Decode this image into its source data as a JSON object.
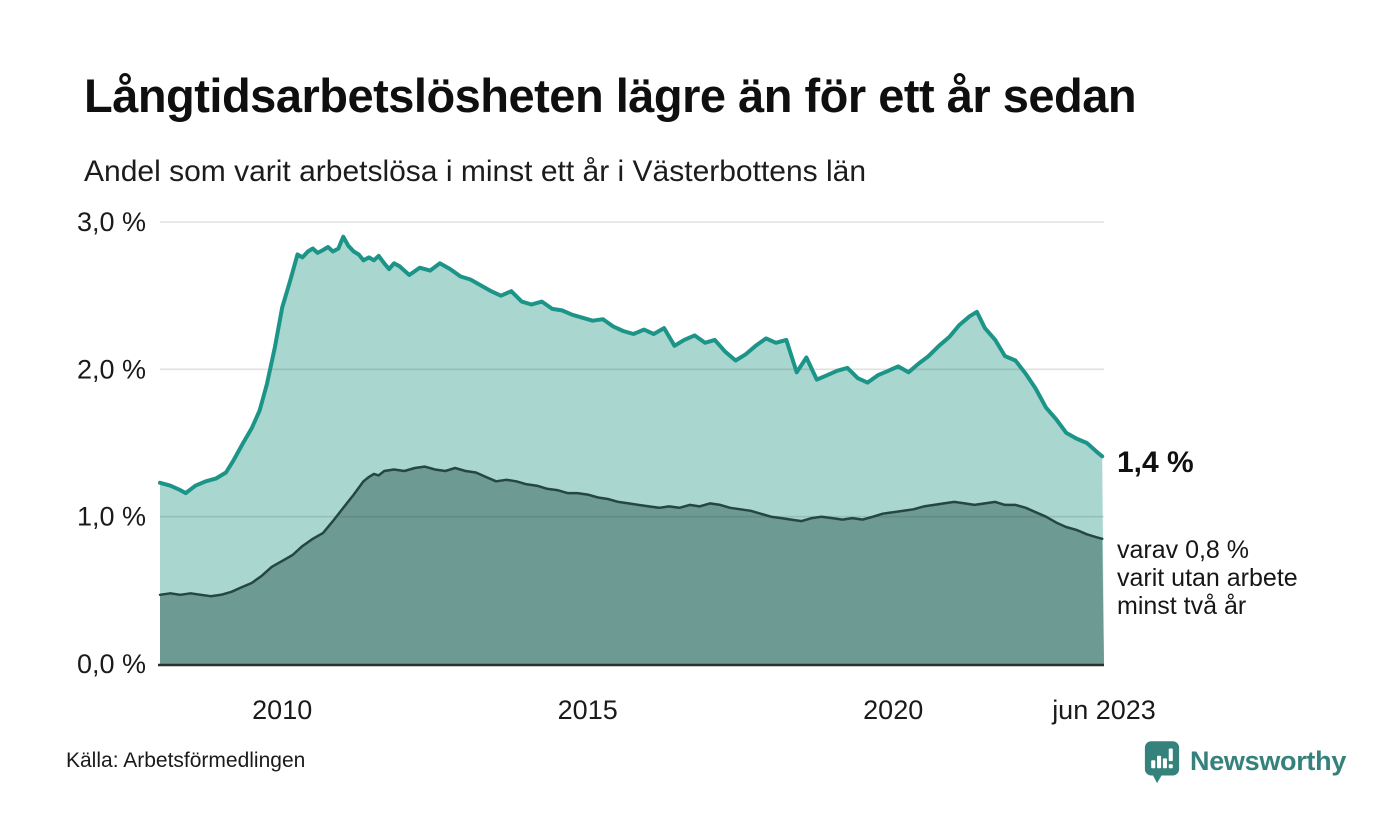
{
  "title": "Långtidsarbetslösheten lägre än för ett år sedan",
  "subtitle": "Andel som varit arbetslösa i minst ett år i Västerbottens län",
  "source": "Källa: Arbetsförmedlingen",
  "branding": {
    "name": "Newsworthy",
    "color": "#35827c"
  },
  "annotations": {
    "latest_total": "1,4 %",
    "secondary_lines": [
      "varav 0,8 %",
      "varit utan arbete",
      "minst två år"
    ]
  },
  "colors": {
    "total_stroke": "#1c9488",
    "total_fill": "#a9d6cf",
    "subset_stroke": "#254743",
    "subset_fill": "#6e9a94",
    "gridline": "rgba(40,40,40,0.14)",
    "axis_line": "#2e2e2e",
    "tick_text": "#1a1a1a"
  },
  "chart_data": {
    "type": "area",
    "title": "Långtidsarbetslösheten lägre än för ett år sedan",
    "subtitle": "Andel som varit arbetslösa i minst ett år i Västerbottens län",
    "ylabel": "",
    "xlabel": "",
    "x_range": [
      2008.0,
      2023.45
    ],
    "y_range": [
      0,
      3.0
    ],
    "grid": true,
    "legend": "annotated-inline",
    "x_ticks": [
      {
        "label": "2010",
        "year": 2010
      },
      {
        "label": "2015",
        "year": 2015
      },
      {
        "label": "2020",
        "year": 2020
      },
      {
        "label": "jun 2023",
        "year": 2023.45
      }
    ],
    "y_ticks": [
      {
        "label": "3,0 %",
        "value": 3.0
      },
      {
        "label": "2,0 %",
        "value": 2.0
      },
      {
        "label": "1,0 %",
        "value": 1.0
      },
      {
        "label": "0,0 %",
        "value": 0.0
      }
    ],
    "series": [
      {
        "name": "arbetslösa minst ett år",
        "latest_value_label": "1,4 %",
        "points": [
          [
            2008.0,
            1.23
          ],
          [
            2008.17,
            1.21
          ],
          [
            2008.33,
            1.18
          ],
          [
            2008.42,
            1.16
          ],
          [
            2008.58,
            1.21
          ],
          [
            2008.75,
            1.24
          ],
          [
            2008.92,
            1.26
          ],
          [
            2009.08,
            1.3
          ],
          [
            2009.2,
            1.38
          ],
          [
            2009.36,
            1.5
          ],
          [
            2009.5,
            1.6
          ],
          [
            2009.63,
            1.72
          ],
          [
            2009.75,
            1.9
          ],
          [
            2009.88,
            2.15
          ],
          [
            2010.0,
            2.42
          ],
          [
            2010.13,
            2.6
          ],
          [
            2010.25,
            2.78
          ],
          [
            2010.33,
            2.76
          ],
          [
            2010.42,
            2.8
          ],
          [
            2010.5,
            2.82
          ],
          [
            2010.58,
            2.79
          ],
          [
            2010.67,
            2.81
          ],
          [
            2010.75,
            2.83
          ],
          [
            2010.83,
            2.8
          ],
          [
            2010.92,
            2.82
          ],
          [
            2011.0,
            2.9
          ],
          [
            2011.08,
            2.84
          ],
          [
            2011.17,
            2.8
          ],
          [
            2011.25,
            2.78
          ],
          [
            2011.33,
            2.74
          ],
          [
            2011.42,
            2.76
          ],
          [
            2011.5,
            2.74
          ],
          [
            2011.58,
            2.77
          ],
          [
            2011.67,
            2.72
          ],
          [
            2011.75,
            2.68
          ],
          [
            2011.83,
            2.72
          ],
          [
            2011.92,
            2.7
          ],
          [
            2012.08,
            2.64
          ],
          [
            2012.25,
            2.69
          ],
          [
            2012.42,
            2.67
          ],
          [
            2012.58,
            2.72
          ],
          [
            2012.75,
            2.68
          ],
          [
            2012.92,
            2.63
          ],
          [
            2013.08,
            2.61
          ],
          [
            2013.25,
            2.57
          ],
          [
            2013.42,
            2.53
          ],
          [
            2013.58,
            2.5
          ],
          [
            2013.75,
            2.53
          ],
          [
            2013.92,
            2.46
          ],
          [
            2014.08,
            2.44
          ],
          [
            2014.25,
            2.46
          ],
          [
            2014.42,
            2.41
          ],
          [
            2014.58,
            2.4
          ],
          [
            2014.75,
            2.37
          ],
          [
            2014.92,
            2.35
          ],
          [
            2015.08,
            2.33
          ],
          [
            2015.25,
            2.34
          ],
          [
            2015.42,
            2.29
          ],
          [
            2015.58,
            2.26
          ],
          [
            2015.75,
            2.24
          ],
          [
            2015.92,
            2.27
          ],
          [
            2016.08,
            2.24
          ],
          [
            2016.25,
            2.28
          ],
          [
            2016.42,
            2.16
          ],
          [
            2016.58,
            2.2
          ],
          [
            2016.75,
            2.23
          ],
          [
            2016.92,
            2.18
          ],
          [
            2017.08,
            2.2
          ],
          [
            2017.25,
            2.12
          ],
          [
            2017.42,
            2.06
          ],
          [
            2017.58,
            2.1
          ],
          [
            2017.75,
            2.16
          ],
          [
            2017.92,
            2.21
          ],
          [
            2018.08,
            2.18
          ],
          [
            2018.25,
            2.2
          ],
          [
            2018.42,
            1.98
          ],
          [
            2018.58,
            2.08
          ],
          [
            2018.75,
            1.93
          ],
          [
            2018.92,
            1.96
          ],
          [
            2019.08,
            1.99
          ],
          [
            2019.25,
            2.01
          ],
          [
            2019.42,
            1.94
          ],
          [
            2019.58,
            1.91
          ],
          [
            2019.75,
            1.96
          ],
          [
            2019.92,
            1.99
          ],
          [
            2020.08,
            2.02
          ],
          [
            2020.25,
            1.98
          ],
          [
            2020.42,
            2.04
          ],
          [
            2020.58,
            2.09
          ],
          [
            2020.75,
            2.16
          ],
          [
            2020.92,
            2.22
          ],
          [
            2021.08,
            2.3
          ],
          [
            2021.25,
            2.36
          ],
          [
            2021.37,
            2.39
          ],
          [
            2021.5,
            2.28
          ],
          [
            2021.67,
            2.2
          ],
          [
            2021.83,
            2.09
          ],
          [
            2022.0,
            2.06
          ],
          [
            2022.17,
            1.97
          ],
          [
            2022.33,
            1.87
          ],
          [
            2022.5,
            1.74
          ],
          [
            2022.67,
            1.66
          ],
          [
            2022.83,
            1.57
          ],
          [
            2023.0,
            1.53
          ],
          [
            2023.17,
            1.5
          ],
          [
            2023.33,
            1.44
          ],
          [
            2023.42,
            1.41
          ]
        ]
      },
      {
        "name": "varav arbetslösa minst två år",
        "latest_value_label": "0,8 %",
        "points": [
          [
            2008.0,
            0.47
          ],
          [
            2008.17,
            0.48
          ],
          [
            2008.33,
            0.47
          ],
          [
            2008.5,
            0.48
          ],
          [
            2008.67,
            0.47
          ],
          [
            2008.83,
            0.46
          ],
          [
            2009.0,
            0.47
          ],
          [
            2009.17,
            0.49
          ],
          [
            2009.33,
            0.52
          ],
          [
            2009.5,
            0.55
          ],
          [
            2009.67,
            0.6
          ],
          [
            2009.83,
            0.66
          ],
          [
            2010.0,
            0.7
          ],
          [
            2010.17,
            0.74
          ],
          [
            2010.33,
            0.8
          ],
          [
            2010.5,
            0.85
          ],
          [
            2010.67,
            0.89
          ],
          [
            2010.83,
            0.97
          ],
          [
            2011.0,
            1.06
          ],
          [
            2011.17,
            1.15
          ],
          [
            2011.33,
            1.24
          ],
          [
            2011.42,
            1.27
          ],
          [
            2011.5,
            1.29
          ],
          [
            2011.58,
            1.28
          ],
          [
            2011.67,
            1.31
          ],
          [
            2011.83,
            1.32
          ],
          [
            2012.0,
            1.31
          ],
          [
            2012.17,
            1.33
          ],
          [
            2012.33,
            1.34
          ],
          [
            2012.5,
            1.32
          ],
          [
            2012.67,
            1.31
          ],
          [
            2012.83,
            1.33
          ],
          [
            2013.0,
            1.31
          ],
          [
            2013.17,
            1.3
          ],
          [
            2013.33,
            1.27
          ],
          [
            2013.5,
            1.24
          ],
          [
            2013.67,
            1.25
          ],
          [
            2013.83,
            1.24
          ],
          [
            2014.0,
            1.22
          ],
          [
            2014.17,
            1.21
          ],
          [
            2014.33,
            1.19
          ],
          [
            2014.5,
            1.18
          ],
          [
            2014.67,
            1.16
          ],
          [
            2014.83,
            1.16
          ],
          [
            2015.0,
            1.15
          ],
          [
            2015.17,
            1.13
          ],
          [
            2015.33,
            1.12
          ],
          [
            2015.5,
            1.1
          ],
          [
            2015.67,
            1.09
          ],
          [
            2015.83,
            1.08
          ],
          [
            2016.0,
            1.07
          ],
          [
            2016.17,
            1.06
          ],
          [
            2016.33,
            1.07
          ],
          [
            2016.5,
            1.06
          ],
          [
            2016.67,
            1.08
          ],
          [
            2016.83,
            1.07
          ],
          [
            2017.0,
            1.09
          ],
          [
            2017.17,
            1.08
          ],
          [
            2017.33,
            1.06
          ],
          [
            2017.5,
            1.05
          ],
          [
            2017.67,
            1.04
          ],
          [
            2017.83,
            1.02
          ],
          [
            2018.0,
            1.0
          ],
          [
            2018.17,
            0.99
          ],
          [
            2018.33,
            0.98
          ],
          [
            2018.5,
            0.97
          ],
          [
            2018.67,
            0.99
          ],
          [
            2018.83,
            1.0
          ],
          [
            2019.0,
            0.99
          ],
          [
            2019.17,
            0.98
          ],
          [
            2019.33,
            0.99
          ],
          [
            2019.5,
            0.98
          ],
          [
            2019.67,
            1.0
          ],
          [
            2019.83,
            1.02
          ],
          [
            2020.0,
            1.03
          ],
          [
            2020.17,
            1.04
          ],
          [
            2020.33,
            1.05
          ],
          [
            2020.5,
            1.07
          ],
          [
            2020.67,
            1.08
          ],
          [
            2020.83,
            1.09
          ],
          [
            2021.0,
            1.1
          ],
          [
            2021.17,
            1.09
          ],
          [
            2021.33,
            1.08
          ],
          [
            2021.5,
            1.09
          ],
          [
            2021.67,
            1.1
          ],
          [
            2021.83,
            1.08
          ],
          [
            2022.0,
            1.08
          ],
          [
            2022.17,
            1.06
          ],
          [
            2022.33,
            1.03
          ],
          [
            2022.5,
            1.0
          ],
          [
            2022.67,
            0.96
          ],
          [
            2022.83,
            0.93
          ],
          [
            2023.0,
            0.91
          ],
          [
            2023.17,
            0.88
          ],
          [
            2023.33,
            0.86
          ],
          [
            2023.42,
            0.85
          ]
        ]
      }
    ]
  }
}
